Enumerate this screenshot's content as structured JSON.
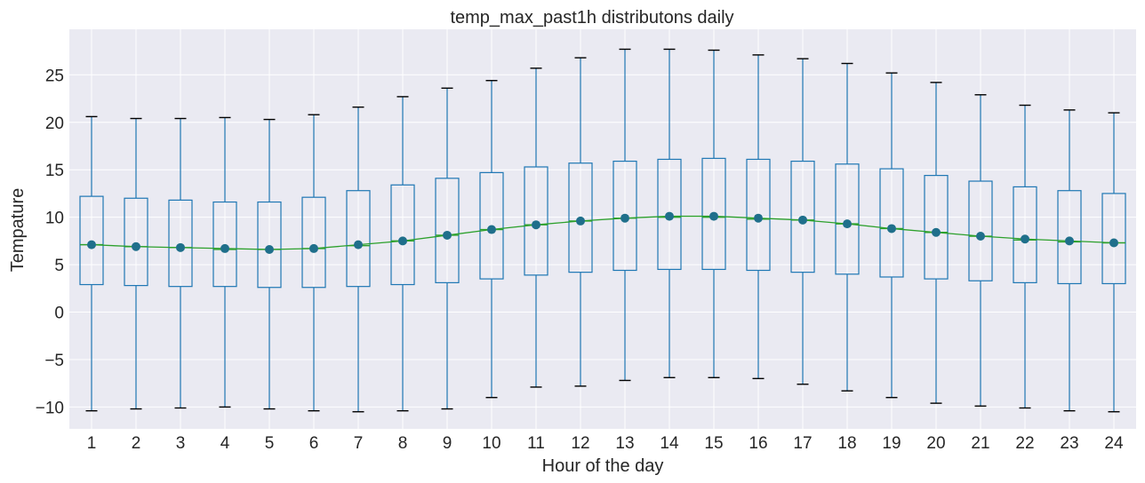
{
  "chart_data": {
    "type": "box",
    "title": "temp_max_past1h distributons daily",
    "xlabel": "Hour of the day",
    "ylabel": "Tempature",
    "ylim": [
      -12.3,
      29.8
    ],
    "yticks": [
      -10,
      -5,
      0,
      5,
      10,
      15,
      20,
      25
    ],
    "grid": true,
    "categories": [
      "1",
      "2",
      "3",
      "4",
      "5",
      "6",
      "7",
      "8",
      "9",
      "10",
      "11",
      "12",
      "13",
      "14",
      "15",
      "16",
      "17",
      "18",
      "19",
      "20",
      "21",
      "22",
      "23",
      "24"
    ],
    "boxes": [
      {
        "whislo": -10.4,
        "q1": 2.9,
        "med": 7.1,
        "q3": 12.2,
        "whishi": 20.6
      },
      {
        "whislo": -10.2,
        "q1": 2.8,
        "med": 6.9,
        "q3": 12.0,
        "whishi": 20.4
      },
      {
        "whislo": -10.1,
        "q1": 2.7,
        "med": 6.8,
        "q3": 11.8,
        "whishi": 20.4
      },
      {
        "whislo": -10.0,
        "q1": 2.7,
        "med": 6.6,
        "q3": 11.6,
        "whishi": 20.5
      },
      {
        "whislo": -10.2,
        "q1": 2.6,
        "med": 6.6,
        "q3": 11.6,
        "whishi": 20.3
      },
      {
        "whislo": -10.4,
        "q1": 2.6,
        "med": 6.7,
        "q3": 12.1,
        "whishi": 20.8
      },
      {
        "whislo": -10.5,
        "q1": 2.7,
        "med": 7.0,
        "q3": 12.8,
        "whishi": 21.6
      },
      {
        "whislo": -10.4,
        "q1": 2.9,
        "med": 7.5,
        "q3": 13.4,
        "whishi": 22.7
      },
      {
        "whislo": -10.2,
        "q1": 3.1,
        "med": 8.1,
        "q3": 14.1,
        "whishi": 23.6
      },
      {
        "whislo": -9.0,
        "q1": 3.5,
        "med": 8.7,
        "q3": 14.7,
        "whishi": 24.4
      },
      {
        "whislo": -7.9,
        "q1": 3.9,
        "med": 9.2,
        "q3": 15.3,
        "whishi": 25.7
      },
      {
        "whislo": -7.8,
        "q1": 4.2,
        "med": 9.6,
        "q3": 15.7,
        "whishi": 26.8
      },
      {
        "whislo": -7.2,
        "q1": 4.4,
        "med": 9.9,
        "q3": 15.9,
        "whishi": 27.7
      },
      {
        "whislo": -6.9,
        "q1": 4.5,
        "med": 10.0,
        "q3": 16.1,
        "whishi": 27.7
      },
      {
        "whislo": -6.9,
        "q1": 4.5,
        "med": 10.0,
        "q3": 16.2,
        "whishi": 27.6
      },
      {
        "whislo": -7.0,
        "q1": 4.4,
        "med": 9.8,
        "q3": 16.1,
        "whishi": 27.1
      },
      {
        "whislo": -7.6,
        "q1": 4.2,
        "med": 9.7,
        "q3": 15.9,
        "whishi": 26.7
      },
      {
        "whislo": -8.3,
        "q1": 4.0,
        "med": 9.3,
        "q3": 15.6,
        "whishi": 26.2
      },
      {
        "whislo": -9.0,
        "q1": 3.7,
        "med": 8.8,
        "q3": 15.1,
        "whishi": 25.2
      },
      {
        "whislo": -9.6,
        "q1": 3.5,
        "med": 8.4,
        "q3": 14.4,
        "whishi": 24.2
      },
      {
        "whislo": -9.9,
        "q1": 3.3,
        "med": 8.0,
        "q3": 13.8,
        "whishi": 22.9
      },
      {
        "whislo": -10.1,
        "q1": 3.1,
        "med": 7.6,
        "q3": 13.2,
        "whishi": 21.8
      },
      {
        "whislo": -10.4,
        "q1": 3.0,
        "med": 7.4,
        "q3": 12.8,
        "whishi": 21.3
      },
      {
        "whislo": -10.5,
        "q1": 3.0,
        "med": 7.3,
        "q3": 12.5,
        "whishi": 21.0
      }
    ],
    "mean_line": [
      7.1,
      6.9,
      6.8,
      6.7,
      6.6,
      6.7,
      7.1,
      7.5,
      8.1,
      8.7,
      9.2,
      9.6,
      9.9,
      10.1,
      10.1,
      9.9,
      9.7,
      9.3,
      8.8,
      8.4,
      8.0,
      7.7,
      7.5,
      7.3
    ],
    "colors": {
      "background": "#eaeaf2",
      "grid": "#ffffff",
      "box": "#1f77b4",
      "median": "#2ca02c",
      "whisker_cap": "#000000",
      "mean_marker": "#1f6f8b",
      "mean_line": "#2ca02c"
    }
  }
}
